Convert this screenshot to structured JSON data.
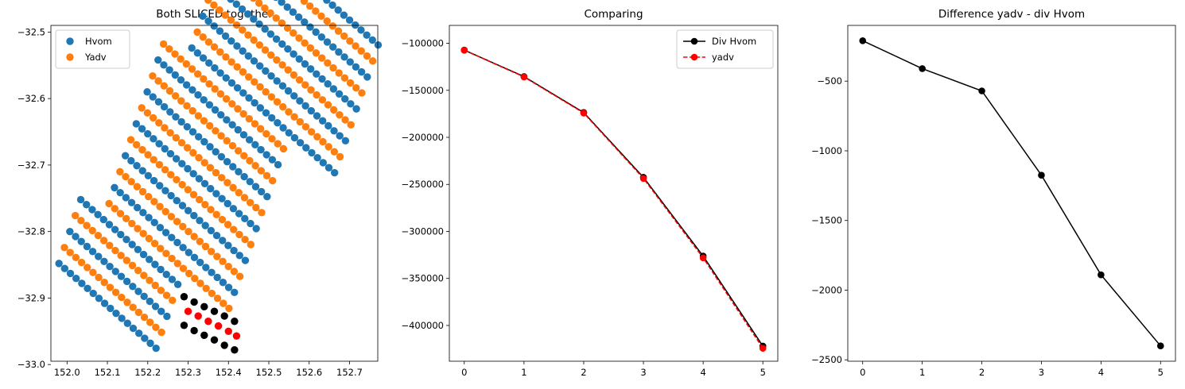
{
  "chart_data": [
    {
      "type": "scatter",
      "title": "Both SLICED together",
      "xlim": [
        151.96,
        152.77
      ],
      "ylim": [
        -32.995,
        -32.49
      ],
      "xticks": [
        152.0,
        152.1,
        152.2,
        152.3,
        152.4,
        152.5,
        152.6,
        152.7
      ],
      "xtick_labels": [
        "152.0",
        "152.1",
        "152.2",
        "152.3",
        "152.4",
        "152.5",
        "152.6",
        "152.7"
      ],
      "yticks": [
        -32.5,
        -32.6,
        -32.7,
        -32.8,
        -32.9,
        -33.0
      ],
      "ytick_labels": [
        "−32.5",
        "−32.6",
        "−32.7",
        "−32.8",
        "−32.9",
        "−33.0"
      ],
      "legend": {
        "placement": "upper-left",
        "entries": [
          {
            "label": "Hvom",
            "color": "#1f77b4"
          },
          {
            "label": "Yadv",
            "color": "#ff7f0e"
          }
        ]
      },
      "grid": {
        "origin": [
          151.98,
          -32.848
        ],
        "step_along": [
          0.01415,
          -0.0075
        ],
        "step_across": [
          0.0135,
          0.024
        ],
        "row_lengths": [
          [
            0,
            18
          ],
          [
            0,
            18
          ],
          [
            0,
            18
          ],
          [
            0,
            18
          ],
          [
            0,
            18
          ],
          [
            4,
            26
          ],
          [
            4,
            26
          ],
          [
            4,
            26
          ],
          [
            4,
            26
          ],
          [
            4,
            26
          ],
          [
            4,
            26
          ],
          [
            4,
            26
          ],
          [
            4,
            26
          ],
          [
            4,
            26
          ],
          [
            4,
            26
          ],
          [
            4,
            26
          ],
          [
            8,
            34
          ],
          [
            8,
            34
          ],
          [
            8,
            34
          ],
          [
            8,
            34
          ],
          [
            8,
            34
          ],
          [
            8,
            34
          ],
          [
            8,
            34
          ],
          [
            8,
            34
          ],
          [
            8,
            34
          ]
        ]
      },
      "series": [
        {
          "name": "Hvom",
          "color": "#1f77b4",
          "rows": "even"
        },
        {
          "name": "Yadv",
          "color": "#ff7f0e",
          "rows": "odd"
        }
      ],
      "highlight_points": [
        {
          "color": "#000000",
          "points": [
            [
              152.29,
              -32.898
            ],
            [
              152.315,
              -32.906
            ],
            [
              152.34,
              -32.913
            ],
            [
              152.365,
              -32.92
            ],
            [
              152.39,
              -32.927
            ],
            [
              152.415,
              -32.935
            ],
            [
              152.29,
              -32.941
            ],
            [
              152.315,
              -32.949
            ],
            [
              152.34,
              -32.956
            ],
            [
              152.365,
              -32.963
            ],
            [
              152.39,
              -32.971
            ],
            [
              152.415,
              -32.978
            ]
          ]
        },
        {
          "color": "#ff0000",
          "points": [
            [
              152.3,
              -32.92
            ],
            [
              152.325,
              -32.927
            ],
            [
              152.35,
              -32.935
            ],
            [
              152.375,
              -32.942
            ],
            [
              152.4,
              -32.95
            ],
            [
              152.42,
              -32.957
            ]
          ]
        }
      ]
    },
    {
      "type": "line",
      "title": "Comparing",
      "x": [
        0,
        1,
        2,
        3,
        4,
        5
      ],
      "xlim": [
        -0.25,
        5.25
      ],
      "ylim": [
        -438000,
        -81000
      ],
      "xticks": [
        0,
        1,
        2,
        3,
        4,
        5
      ],
      "xtick_labels": [
        "0",
        "1",
        "2",
        "3",
        "4",
        "5"
      ],
      "yticks": [
        -100000,
        -150000,
        -200000,
        -250000,
        -300000,
        -350000,
        -400000
      ],
      "ytick_labels": [
        "−100000",
        "−150000",
        "−200000",
        "−250000",
        "−300000",
        "−350000",
        "−400000"
      ],
      "legend": {
        "placement": "upper-right",
        "entries": [
          {
            "label": "Div Hvom",
            "color": "#000000",
            "style": "solid"
          },
          {
            "label": "yadv",
            "color": "#ff0000",
            "style": "dashed"
          }
        ]
      },
      "series": [
        {
          "name": "Div Hvom",
          "color": "#000000",
          "style": "solid",
          "values": [
            -107200,
            -135400,
            -173600,
            -242500,
            -326200,
            -421900
          ]
        },
        {
          "name": "yadv",
          "color": "#ff0000",
          "style": "dashed",
          "values": [
            -107400,
            -135800,
            -174200,
            -243700,
            -328100,
            -424300
          ]
        }
      ]
    },
    {
      "type": "line",
      "title": "Difference yadv - div Hvom",
      "x": [
        0,
        1,
        2,
        3,
        4,
        5
      ],
      "xlim": [
        -0.25,
        5.25
      ],
      "ylim": [
        -2510,
        -100
      ],
      "xticks": [
        0,
        1,
        2,
        3,
        4,
        5
      ],
      "xtick_labels": [
        "0",
        "1",
        "2",
        "3",
        "4",
        "5"
      ],
      "yticks": [
        -500,
        -1000,
        -1500,
        -2000,
        -2500
      ],
      "ytick_labels": [
        "−500",
        "−1000",
        "−1500",
        "−2000",
        "−2500"
      ],
      "series": [
        {
          "color": "#000000",
          "style": "solid",
          "values": [
            -210,
            -410,
            -570,
            -1175,
            -1890,
            -2400
          ]
        }
      ]
    }
  ]
}
